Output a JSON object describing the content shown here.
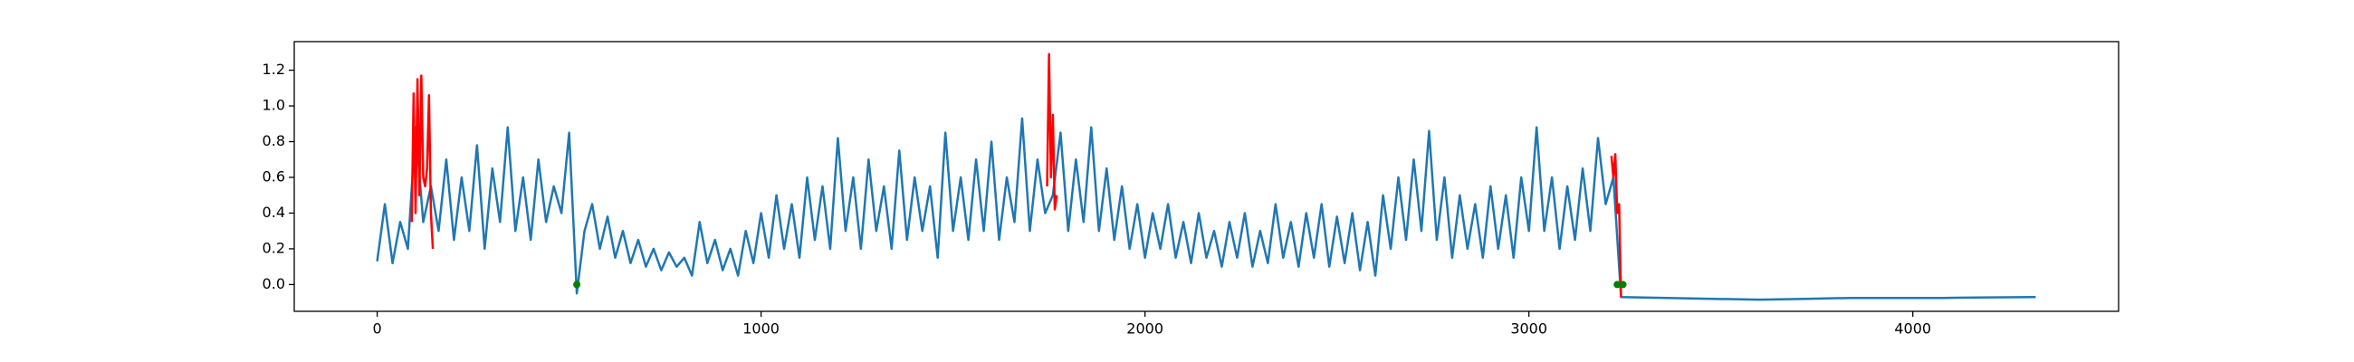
{
  "chart_data": {
    "type": "line",
    "xlim": [
      -216,
      4536
    ],
    "ylim": [
      -0.15,
      1.36
    ],
    "xticks": [
      0,
      1000,
      2000,
      3000,
      4000
    ],
    "yticks": [
      {
        "value": 0,
        "label": "0.0"
      },
      0.2,
      0.4,
      0.6,
      0.8,
      {
        "value": 1,
        "label": "1.0"
      },
      1.2
    ],
    "series": [
      {
        "color": "#1f77b4",
        "x": [
          0,
          20,
          40,
          60,
          80,
          100,
          120,
          140,
          160,
          180,
          200,
          220,
          240,
          260,
          280,
          300,
          320,
          340,
          360,
          380,
          400,
          420,
          440,
          460,
          480,
          500,
          520,
          540,
          560,
          580,
          600,
          620,
          640,
          660,
          680,
          700,
          720,
          740,
          760,
          780,
          800,
          820,
          840,
          860,
          880,
          900,
          920,
          940,
          960,
          980,
          1000,
          1020,
          1040,
          1060,
          1080,
          1100,
          1120,
          1140,
          1160,
          1180,
          1200,
          1220,
          1240,
          1260,
          1280,
          1300,
          1320,
          1340,
          1360,
          1380,
          1400,
          1420,
          1440,
          1460,
          1480,
          1500,
          1520,
          1540,
          1560,
          1580,
          1600,
          1620,
          1640,
          1660,
          1680,
          1700,
          1720,
          1740,
          1760,
          1780,
          1800,
          1820,
          1840,
          1860,
          1880,
          1900,
          1920,
          1940,
          1960,
          1980,
          2000,
          2020,
          2040,
          2060,
          2080,
          2100,
          2120,
          2140,
          2160,
          2180,
          2200,
          2220,
          2240,
          2260,
          2280,
          2300,
          2320,
          2340,
          2360,
          2380,
          2400,
          2420,
          2440,
          2460,
          2480,
          2500,
          2520,
          2540,
          2560,
          2580,
          2600,
          2620,
          2640,
          2660,
          2680,
          2700,
          2720,
          2740,
          2760,
          2780,
          2800,
          2820,
          2840,
          2860,
          2880,
          2900,
          2920,
          2940,
          2960,
          2980,
          3000,
          3020,
          3040,
          3060,
          3080,
          3100,
          3120,
          3140,
          3160,
          3180,
          3200,
          3220,
          3240,
          3360,
          3480,
          3600,
          3720,
          3840,
          3960,
          4080,
          4200,
          4320
        ],
        "values": [
          0.13,
          0.45,
          0.12,
          0.35,
          0.2,
          0.88,
          0.35,
          0.55,
          0.3,
          0.7,
          0.25,
          0.6,
          0.3,
          0.78,
          0.2,
          0.65,
          0.35,
          0.88,
          0.3,
          0.6,
          0.25,
          0.7,
          0.35,
          0.55,
          0.4,
          0.85,
          -0.05,
          0.3,
          0.45,
          0.2,
          0.38,
          0.15,
          0.3,
          0.12,
          0.25,
          0.1,
          0.2,
          0.08,
          0.18,
          0.1,
          0.15,
          0.05,
          0.35,
          0.12,
          0.25,
          0.08,
          0.2,
          0.05,
          0.3,
          0.12,
          0.4,
          0.15,
          0.5,
          0.2,
          0.45,
          0.15,
          0.6,
          0.25,
          0.55,
          0.2,
          0.82,
          0.3,
          0.6,
          0.2,
          0.7,
          0.3,
          0.55,
          0.2,
          0.75,
          0.25,
          0.6,
          0.3,
          0.55,
          0.15,
          0.85,
          0.3,
          0.6,
          0.25,
          0.7,
          0.3,
          0.8,
          0.25,
          0.6,
          0.35,
          0.93,
          0.3,
          0.7,
          0.4,
          0.5,
          0.85,
          0.3,
          0.7,
          0.35,
          0.88,
          0.3,
          0.65,
          0.25,
          0.55,
          0.2,
          0.45,
          0.15,
          0.4,
          0.2,
          0.45,
          0.15,
          0.35,
          0.12,
          0.4,
          0.15,
          0.3,
          0.1,
          0.35,
          0.15,
          0.4,
          0.1,
          0.3,
          0.12,
          0.45,
          0.15,
          0.35,
          0.1,
          0.4,
          0.15,
          0.45,
          0.1,
          0.38,
          0.12,
          0.4,
          0.08,
          0.35,
          0.05,
          0.5,
          0.2,
          0.6,
          0.25,
          0.7,
          0.3,
          0.86,
          0.25,
          0.6,
          0.15,
          0.5,
          0.2,
          0.45,
          0.15,
          0.55,
          0.2,
          0.5,
          0.15,
          0.6,
          0.3,
          0.88,
          0.3,
          0.6,
          0.2,
          0.55,
          0.25,
          0.65,
          0.3,
          0.82,
          0.45,
          0.6,
          -0.07,
          -0.075,
          -0.08,
          -0.085,
          -0.08,
          -0.075,
          -0.075,
          -0.075,
          -0.072,
          -0.07
        ]
      },
      {
        "color": "red",
        "x": [
          90,
          95,
          100,
          105,
          110,
          115,
          120,
          125,
          130,
          135,
          140,
          145
        ],
        "values": [
          0.35,
          1.07,
          0.4,
          1.15,
          0.5,
          1.17,
          0.6,
          0.55,
          0.65,
          1.06,
          0.4,
          0.2
        ]
      },
      {
        "color": "red",
        "x": [
          1745,
          1750,
          1755,
          1760,
          1765,
          1770
        ],
        "values": [
          0.55,
          1.29,
          0.6,
          0.95,
          0.42,
          0.5
        ]
      },
      {
        "color": "red",
        "x": [
          3215,
          3220,
          3225,
          3230,
          3235,
          3240
        ],
        "values": [
          0.72,
          0.6,
          0.73,
          0.4,
          0.45,
          -0.07
        ]
      }
    ],
    "markers": {
      "color": "green",
      "x": [
        520,
        3230,
        3245
      ],
      "values": [
        0,
        0,
        0
      ]
    }
  }
}
